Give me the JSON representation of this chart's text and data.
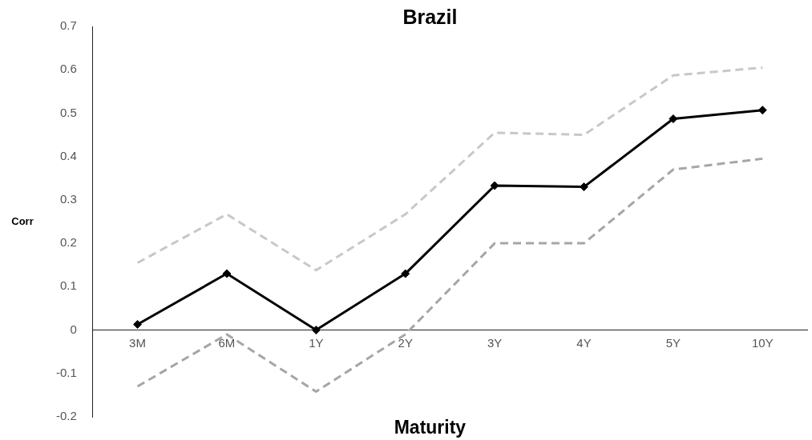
{
  "chart_data": {
    "type": "line",
    "title": "Brazil",
    "xlabel": "Maturity",
    "ylabel": "Corr",
    "categories": [
      "3M",
      "6M",
      "1Y",
      "2Y",
      "3Y",
      "4Y",
      "5Y",
      "10Y"
    ],
    "series": [
      {
        "color": "#c8c8c8",
        "line_style": "dashed",
        "marker": "none",
        "values": [
          0.155,
          0.267,
          0.138,
          0.267,
          0.455,
          0.45,
          0.587,
          0.605
        ]
      },
      {
        "color": "#a6a6a6",
        "line_style": "dashed",
        "marker": "none",
        "values": [
          -0.13,
          -0.01,
          -0.142,
          -0.01,
          0.2,
          0.2,
          0.37,
          0.395
        ]
      },
      {
        "color": "#000000",
        "line_style": "solid",
        "marker": "diamond",
        "values": [
          0.013,
          0.13,
          0,
          0.13,
          0.333,
          0.33,
          0.487,
          0.507
        ]
      }
    ],
    "ylim": [
      -0.2,
      0.7
    ],
    "yticks": [
      -0.2,
      -0.1,
      0,
      0.1,
      0.2,
      0.3,
      0.4,
      0.5,
      0.6,
      0.7
    ],
    "grid": false,
    "legend": false
  }
}
